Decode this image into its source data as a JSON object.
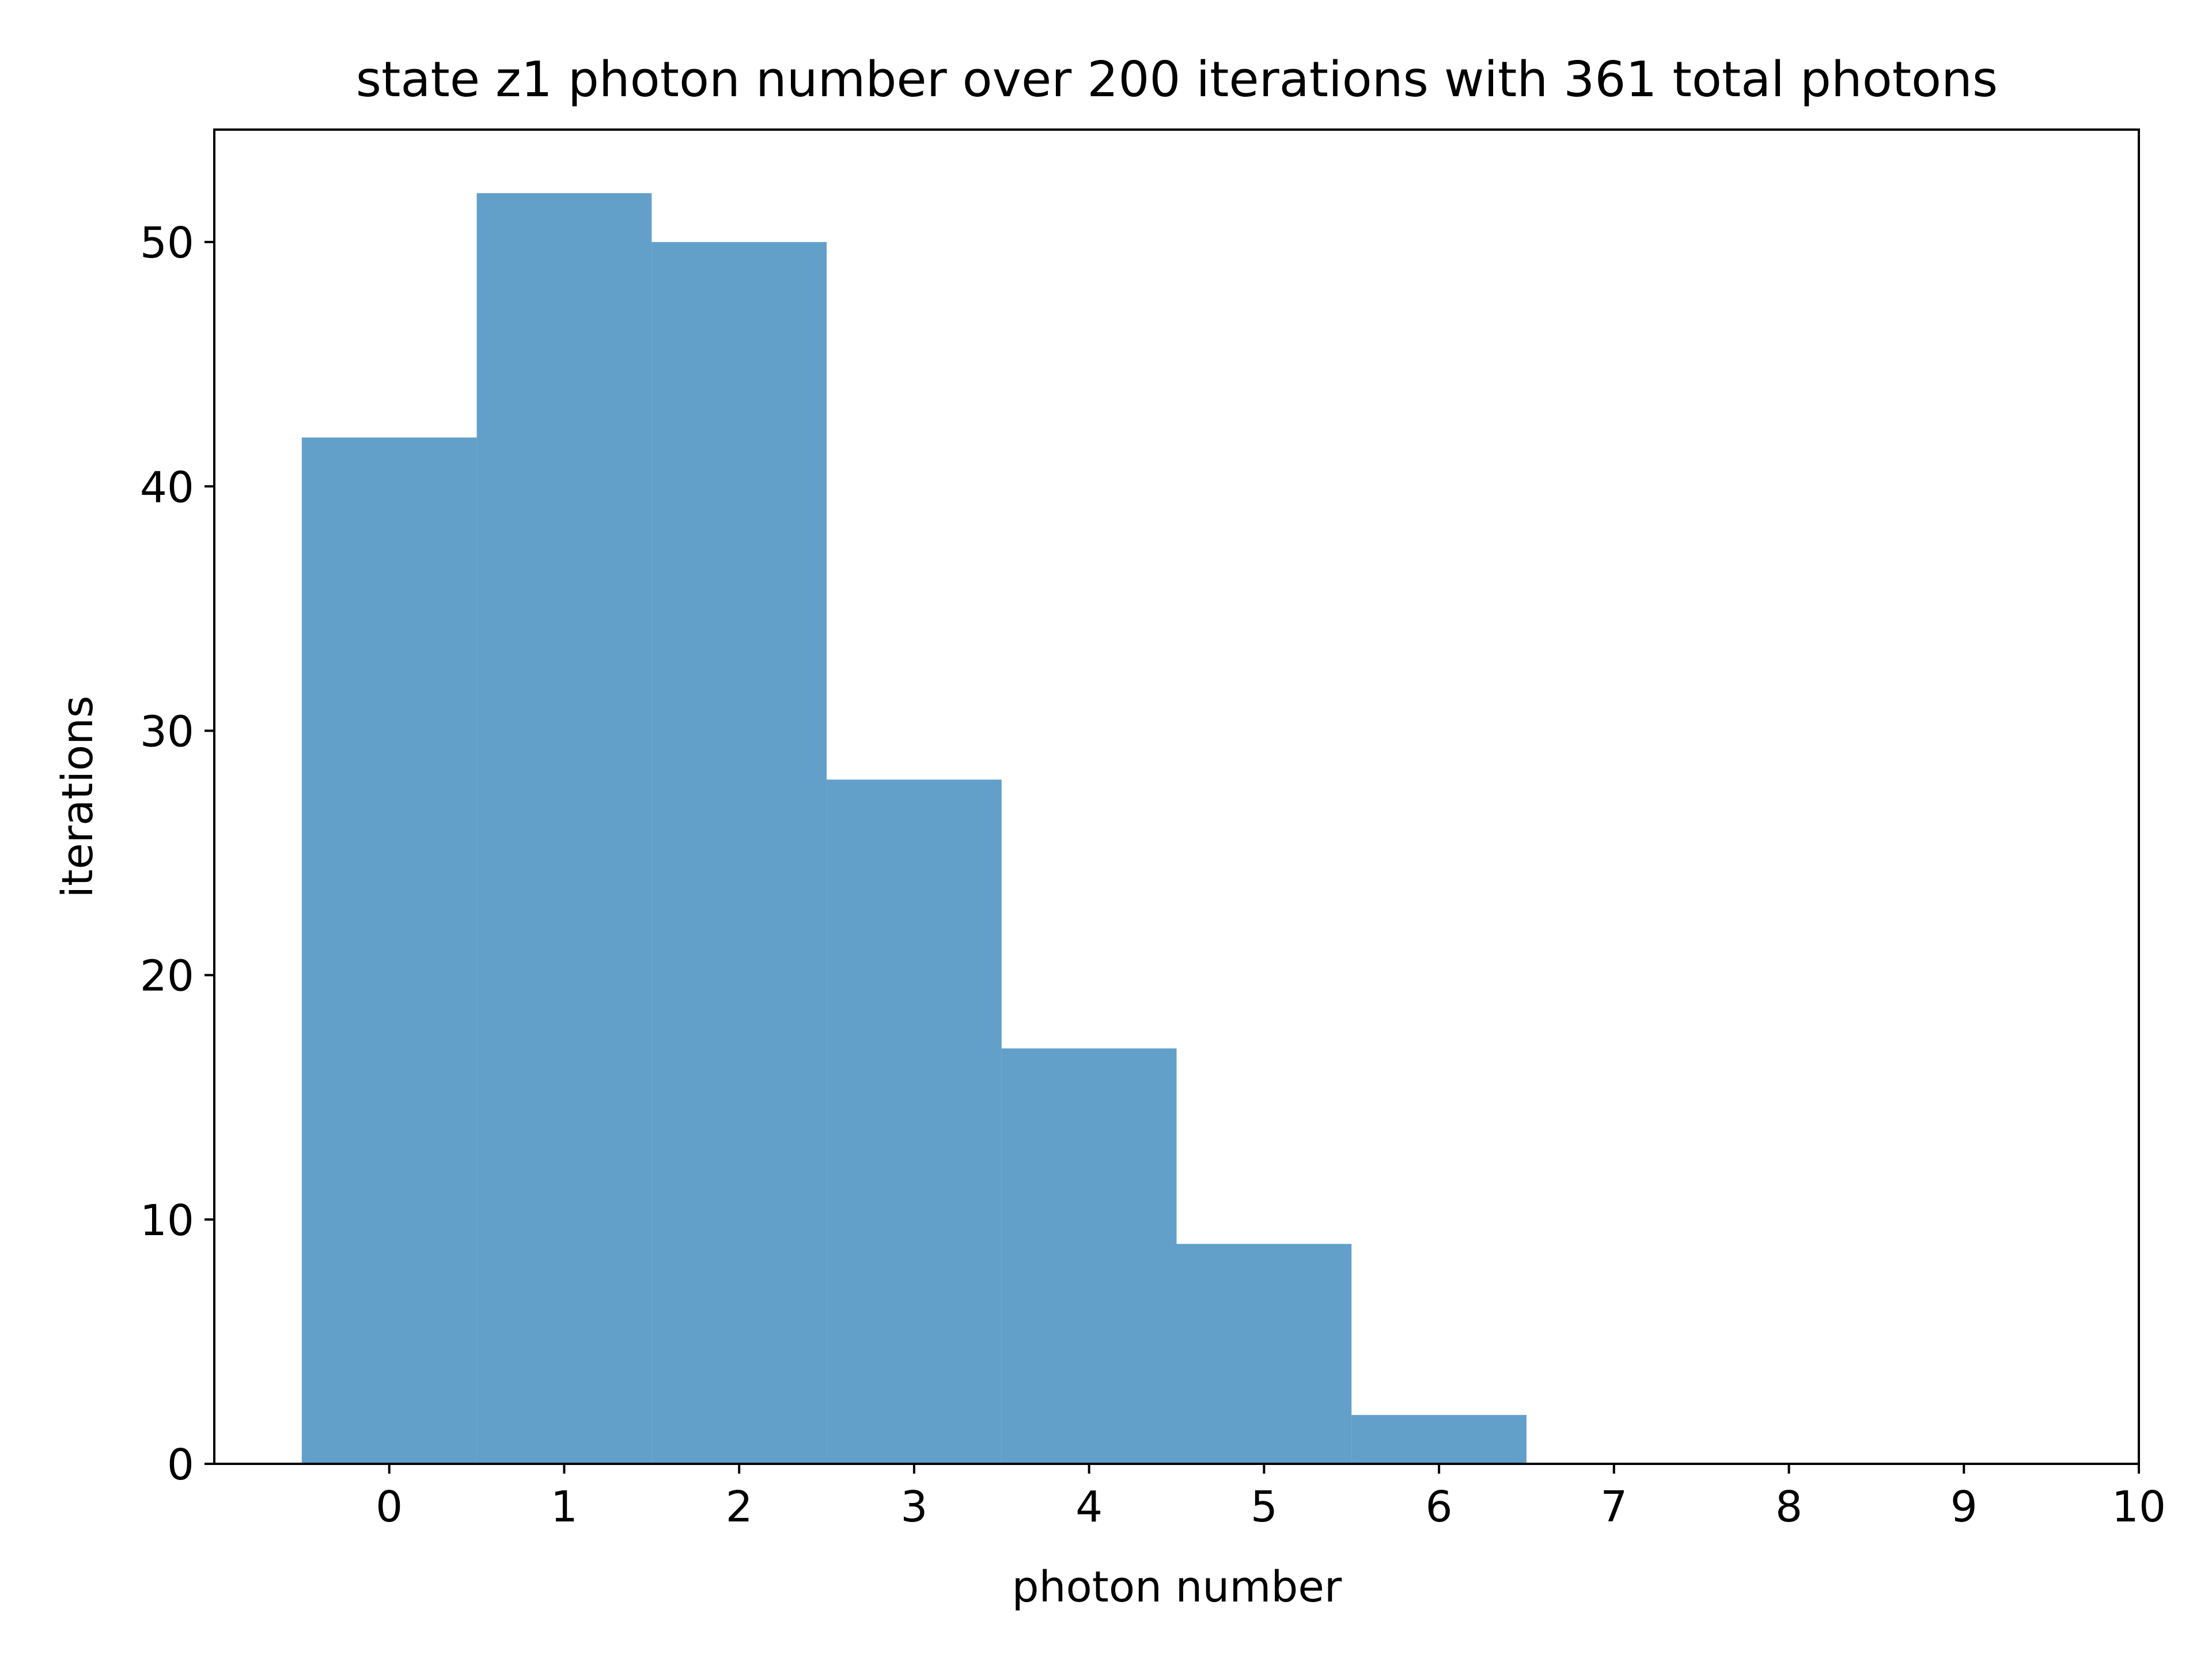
{
  "chart_data": {
    "type": "bar",
    "title": "state z1 photon number over 200 iterations with 361 total photons",
    "xlabel": "photon number",
    "ylabel": "iterations",
    "bins": [
      {
        "x": 0,
        "value": 42
      },
      {
        "x": 1,
        "value": 52
      },
      {
        "x": 2,
        "value": 50
      },
      {
        "x": 3,
        "value": 28
      },
      {
        "x": 4,
        "value": 17
      },
      {
        "x": 5,
        "value": 9
      },
      {
        "x": 6,
        "value": 2
      }
    ],
    "bin_width": 1,
    "xlim": [
      -1,
      10
    ],
    "ylim": [
      0,
      54.6
    ],
    "xticks": [
      "0",
      "1",
      "2",
      "3",
      "4",
      "5",
      "6",
      "7",
      "8",
      "9",
      "10"
    ],
    "yticks": [
      "0",
      "10",
      "20",
      "30",
      "40",
      "50"
    ],
    "bar_color": "#1f77b4",
    "bar_alpha": 0.7,
    "grid": false,
    "legend": false
  }
}
